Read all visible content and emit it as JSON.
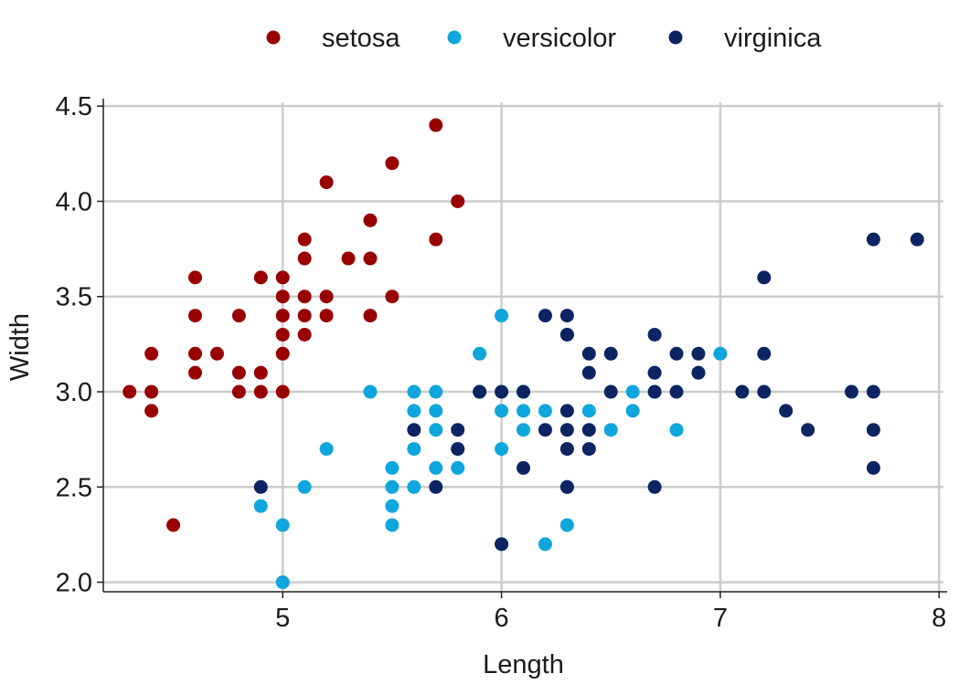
{
  "chart_data": {
    "type": "scatter",
    "xlabel": "Length",
    "ylabel": "Width",
    "xlim": [
      4.18,
      8.02
    ],
    "ylim": [
      1.95,
      4.52
    ],
    "xticks": [
      5,
      6,
      7,
      8
    ],
    "yticks": [
      2.0,
      2.5,
      3.0,
      3.5,
      4.0,
      4.5
    ],
    "xtick_labels": [
      "5",
      "6",
      "7",
      "8"
    ],
    "ytick_labels": [
      "2.0",
      "2.5",
      "3.0",
      "3.5",
      "4.0",
      "4.5"
    ],
    "grid": true,
    "legend": "top",
    "series": [
      {
        "name": "setosa",
        "color": "#990000",
        "points": [
          [
            4.3,
            3.0
          ],
          [
            4.4,
            3.2
          ],
          [
            4.4,
            3.0
          ],
          [
            4.4,
            2.9
          ],
          [
            4.5,
            2.3
          ],
          [
            4.6,
            3.6
          ],
          [
            4.6,
            3.4
          ],
          [
            4.6,
            3.2
          ],
          [
            4.6,
            3.1
          ],
          [
            4.7,
            3.2
          ],
          [
            4.8,
            3.4
          ],
          [
            4.8,
            3.1
          ],
          [
            4.8,
            3.0
          ],
          [
            4.9,
            3.6
          ],
          [
            4.9,
            3.1
          ],
          [
            4.9,
            3.0
          ],
          [
            5.0,
            3.6
          ],
          [
            5.0,
            3.5
          ],
          [
            5.0,
            3.4
          ],
          [
            5.0,
            3.3
          ],
          [
            5.0,
            3.2
          ],
          [
            5.0,
            3.0
          ],
          [
            5.1,
            3.8
          ],
          [
            5.1,
            3.7
          ],
          [
            5.1,
            3.5
          ],
          [
            5.1,
            3.4
          ],
          [
            5.1,
            3.3
          ],
          [
            5.2,
            4.1
          ],
          [
            5.2,
            3.5
          ],
          [
            5.2,
            3.4
          ],
          [
            5.3,
            3.7
          ],
          [
            5.4,
            3.9
          ],
          [
            5.4,
            3.7
          ],
          [
            5.4,
            3.4
          ],
          [
            5.5,
            4.2
          ],
          [
            5.5,
            3.5
          ],
          [
            5.7,
            4.4
          ],
          [
            5.7,
            3.8
          ],
          [
            5.8,
            4.0
          ]
        ]
      },
      {
        "name": "versicolor",
        "color": "#0ea6dc",
        "points": [
          [
            4.9,
            2.4
          ],
          [
            5.0,
            2.3
          ],
          [
            5.0,
            2.0
          ],
          [
            5.1,
            2.5
          ],
          [
            5.2,
            2.7
          ],
          [
            5.4,
            3.0
          ],
          [
            5.5,
            2.6
          ],
          [
            5.5,
            2.5
          ],
          [
            5.5,
            2.4
          ],
          [
            5.5,
            2.3
          ],
          [
            5.6,
            3.0
          ],
          [
            5.6,
            2.9
          ],
          [
            5.6,
            2.7
          ],
          [
            5.6,
            2.5
          ],
          [
            5.7,
            3.0
          ],
          [
            5.7,
            2.9
          ],
          [
            5.7,
            2.8
          ],
          [
            5.7,
            2.6
          ],
          [
            5.8,
            2.7
          ],
          [
            5.8,
            2.6
          ],
          [
            5.9,
            3.2
          ],
          [
            5.9,
            3.0
          ],
          [
            6.0,
            3.4
          ],
          [
            6.0,
            2.9
          ],
          [
            6.0,
            2.7
          ],
          [
            6.0,
            2.2
          ],
          [
            6.1,
            3.0
          ],
          [
            6.1,
            2.9
          ],
          [
            6.1,
            2.8
          ],
          [
            6.2,
            2.9
          ],
          [
            6.2,
            2.2
          ],
          [
            6.3,
            3.3
          ],
          [
            6.3,
            2.5
          ],
          [
            6.3,
            2.3
          ],
          [
            6.4,
            2.9
          ],
          [
            6.5,
            2.8
          ],
          [
            6.6,
            3.0
          ],
          [
            6.6,
            2.9
          ],
          [
            6.7,
            3.1
          ],
          [
            6.7,
            3.0
          ],
          [
            6.8,
            2.8
          ],
          [
            6.9,
            3.1
          ],
          [
            7.0,
            3.2
          ]
        ]
      },
      {
        "name": "virginica",
        "color": "#0d2463",
        "points": [
          [
            4.9,
            2.5
          ],
          [
            5.6,
            2.8
          ],
          [
            5.7,
            2.5
          ],
          [
            5.8,
            2.8
          ],
          [
            5.8,
            2.7
          ],
          [
            5.9,
            3.0
          ],
          [
            6.0,
            3.0
          ],
          [
            6.0,
            2.2
          ],
          [
            6.1,
            3.0
          ],
          [
            6.1,
            2.6
          ],
          [
            6.2,
            3.4
          ],
          [
            6.2,
            2.8
          ],
          [
            6.3,
            3.4
          ],
          [
            6.3,
            3.3
          ],
          [
            6.3,
            2.9
          ],
          [
            6.3,
            2.8
          ],
          [
            6.3,
            2.7
          ],
          [
            6.3,
            2.5
          ],
          [
            6.4,
            3.2
          ],
          [
            6.4,
            3.1
          ],
          [
            6.4,
            2.8
          ],
          [
            6.4,
            2.7
          ],
          [
            6.5,
            3.2
          ],
          [
            6.5,
            3.0
          ],
          [
            6.7,
            3.3
          ],
          [
            6.7,
            3.1
          ],
          [
            6.7,
            3.0
          ],
          [
            6.7,
            2.5
          ],
          [
            6.8,
            3.2
          ],
          [
            6.8,
            3.0
          ],
          [
            6.9,
            3.2
          ],
          [
            6.9,
            3.1
          ],
          [
            7.1,
            3.0
          ],
          [
            7.2,
            3.6
          ],
          [
            7.2,
            3.2
          ],
          [
            7.2,
            3.0
          ],
          [
            7.3,
            2.9
          ],
          [
            7.4,
            2.8
          ],
          [
            7.6,
            3.0
          ],
          [
            7.7,
            3.8
          ],
          [
            7.7,
            3.0
          ],
          [
            7.7,
            2.8
          ],
          [
            7.7,
            2.6
          ],
          [
            7.9,
            3.8
          ]
        ]
      }
    ]
  }
}
